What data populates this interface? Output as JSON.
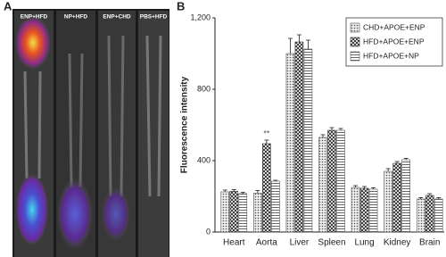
{
  "panel_a": {
    "label": "A",
    "images": [
      "ENP+HFD",
      "NP+HFD",
      "ENP+CHD",
      "PBS+HFD"
    ]
  },
  "chart_data": {
    "type": "bar",
    "panel_label": "B",
    "y_label": "Fluorescence intensity",
    "categories": [
      "Heart",
      "Aorta",
      "Liver",
      "Spleen",
      "Lung",
      "Kidney",
      "Brain"
    ],
    "series": [
      {
        "name": "CHD+APOE+ENP",
        "color": "#555555",
        "pattern": "dots",
        "values": [
          225,
          218,
          1000,
          530,
          250,
          340,
          185
        ],
        "errors": [
          10,
          15,
          85,
          15,
          10,
          15,
          8
        ]
      },
      {
        "name": "HFD+APOE+ENP",
        "color": "#333333",
        "pattern": "crosshatch",
        "values": [
          228,
          495,
          1065,
          570,
          245,
          385,
          205
        ],
        "errors": [
          10,
          20,
          40,
          15,
          10,
          10,
          10
        ]
      },
      {
        "name": "HFD+APOE+NP",
        "color": "#555555",
        "pattern": "hlines",
        "values": [
          215,
          285,
          1025,
          570,
          240,
          405,
          185
        ],
        "errors": [
          8,
          5,
          50,
          10,
          8,
          8,
          8
        ]
      }
    ],
    "annotation": {
      "text": "**",
      "category": "Aorta",
      "series": "HFD+APOE+ENP"
    },
    "ylim": [
      0,
      1200
    ],
    "yticks": [
      0,
      400,
      800,
      {
        "value": 1200,
        "label": "1,200"
      }
    ],
    "legend": "top-right"
  }
}
